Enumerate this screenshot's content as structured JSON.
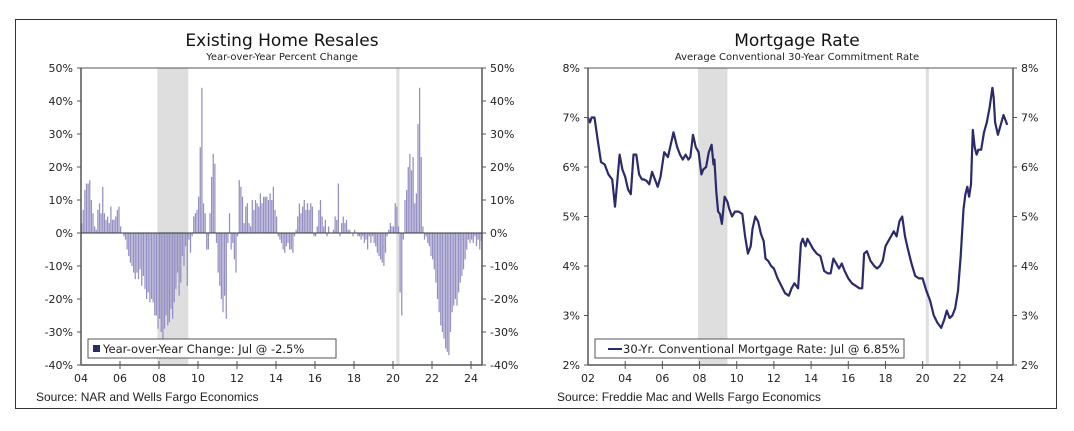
{
  "colors": {
    "bar": "#9590c4",
    "line": "#2b2a6b",
    "legend_marker": "#2b2a6b",
    "recession": "#dedede",
    "axis": "#555555"
  },
  "chart_data": [
    {
      "type": "bar",
      "title": "Existing Home Resales",
      "subtitle": "Year-over-Year Percent Change",
      "xlabel": "",
      "ylabel": "",
      "ylim": [
        -40,
        50
      ],
      "yticks": [
        50,
        40,
        30,
        20,
        10,
        0,
        -10,
        -20,
        -30,
        -40
      ],
      "ytick_labels": [
        "50%",
        "40%",
        "30%",
        "20%",
        "10%",
        "0%",
        "-10%",
        "-20%",
        "-30%",
        "-40%"
      ],
      "xlim": [
        2004,
        2024.6
      ],
      "xticks": [
        2004,
        2006,
        2008,
        2010,
        2012,
        2014,
        2016,
        2018,
        2020,
        2022,
        2024
      ],
      "xtick_labels": [
        "04",
        "06",
        "08",
        "10",
        "12",
        "14",
        "16",
        "18",
        "20",
        "22",
        "24"
      ],
      "recessions": [
        [
          2007.92,
          2009.5
        ],
        [
          2020.17,
          2020.33
        ]
      ],
      "legend": {
        "marker": "square",
        "label": "Year-over-Year Change: Jul @ -2.5%",
        "position": "bottom-left"
      },
      "source": "Source: NAR and Wells Fargo Economics",
      "frequency": "monthly",
      "start": 2004.0,
      "series": [
        {
          "name": "Year-over-Year Change",
          "values": [
            3,
            7,
            13,
            15,
            15,
            16,
            10,
            6,
            2,
            1,
            7,
            9,
            6,
            14,
            6,
            4,
            5,
            3,
            8,
            4,
            4,
            5,
            7,
            8,
            2,
            0,
            -1,
            -2,
            -5,
            -7,
            -9,
            -10,
            -12,
            -14,
            -12,
            -14,
            -11,
            -16,
            -13,
            -17,
            -20,
            -18,
            -21,
            -20,
            -21,
            -25,
            -25,
            -29,
            -26,
            -30,
            -32,
            -29,
            -25,
            -28,
            -27,
            -23,
            -26,
            -21,
            -17,
            -12,
            -19,
            -15,
            -7,
            -10,
            -4,
            -16,
            -2,
            -6,
            -1,
            5,
            6,
            7,
            11,
            26,
            44,
            9,
            6,
            -5,
            -5,
            6,
            17,
            24,
            21,
            -3,
            -12,
            -16,
            -20,
            -24,
            -19,
            -26,
            -3,
            6,
            -5,
            -3,
            -8,
            -12,
            -1,
            16,
            14,
            11,
            3,
            8,
            9,
            3,
            2,
            10,
            7,
            10,
            9,
            8,
            12,
            9,
            11,
            11,
            11,
            10,
            12,
            10,
            14,
            7,
            5,
            -1,
            -2,
            -3,
            -5,
            -6,
            -4,
            -3,
            -5,
            -5,
            -6,
            -1,
            1,
            5,
            9,
            6,
            8,
            10,
            7,
            9,
            7,
            9,
            8,
            -1,
            -1,
            2,
            7,
            10,
            5,
            2,
            4,
            -1,
            2,
            0,
            0,
            1,
            5,
            4,
            15,
            -1,
            3,
            5,
            3,
            4,
            1,
            1,
            0,
            -1,
            1,
            0,
            -1,
            -1,
            -2,
            -1,
            -3,
            -2,
            -5,
            -1,
            -3,
            -1,
            -3,
            -4,
            -6,
            -7,
            -8,
            -9,
            -10,
            -6,
            -1,
            1,
            3,
            2,
            2,
            9,
            8,
            2,
            -18,
            -25,
            -2,
            10,
            13,
            20,
            24,
            19,
            23,
            9,
            12,
            33,
            44,
            23,
            2,
            -2,
            -1,
            -3,
            -4,
            -7,
            -8,
            -11,
            -15,
            -20,
            -24,
            -28,
            -30,
            -32,
            -35,
            -36,
            -37,
            -30,
            -24,
            -22,
            -20,
            -22,
            -18,
            -15,
            -13,
            -11,
            -8,
            -5,
            -2,
            -3,
            -2,
            -3,
            -1,
            -4,
            -2,
            -5,
            -2.5
          ]
        }
      ]
    },
    {
      "type": "line",
      "title": "Mortgage Rate",
      "subtitle": "Average Conventional 30-Year Commitment Rate",
      "xlabel": "",
      "ylabel": "",
      "ylim": [
        2,
        8
      ],
      "yticks": [
        8,
        7,
        6,
        5,
        4,
        3,
        2
      ],
      "ytick_labels": [
        "8%",
        "7%",
        "6%",
        "5%",
        "4%",
        "3%",
        "2%"
      ],
      "xlim": [
        2002,
        2024.8
      ],
      "xticks": [
        2002,
        2004,
        2006,
        2008,
        2010,
        2012,
        2014,
        2016,
        2018,
        2020,
        2022,
        2024
      ],
      "xtick_labels": [
        "02",
        "04",
        "06",
        "08",
        "10",
        "12",
        "14",
        "16",
        "18",
        "20",
        "22",
        "24"
      ],
      "recessions": [
        [
          2007.92,
          2009.5
        ],
        [
          2020.17,
          2020.33
        ]
      ],
      "legend": {
        "marker": "line",
        "label": "30-Yr. Conventional Mortgage Rate: Jul @ 6.85%",
        "position": "bottom-left"
      },
      "source": "Source: Freddie Mac and Wells Fargo Economics",
      "series": [
        {
          "name": "30-Yr. Conventional Mortgage Rate",
          "x": [
            2002.0,
            2002.1,
            2002.2,
            2002.35,
            2002.5,
            2002.7,
            2002.9,
            2003.1,
            2003.3,
            2003.45,
            2003.55,
            2003.7,
            2003.85,
            2004.0,
            2004.15,
            2004.3,
            2004.45,
            2004.6,
            2004.75,
            2004.9,
            2005.0,
            2005.15,
            2005.3,
            2005.45,
            2005.6,
            2005.75,
            2005.9,
            2006.1,
            2006.3,
            2006.45,
            2006.6,
            2006.8,
            2006.95,
            2007.1,
            2007.25,
            2007.4,
            2007.5,
            2007.65,
            2007.8,
            2007.95,
            2008.1,
            2008.2,
            2008.35,
            2008.5,
            2008.65,
            2008.75,
            2008.8,
            2008.9,
            2009.0,
            2009.1,
            2009.2,
            2009.35,
            2009.5,
            2009.6,
            2009.75,
            2009.9,
            2010.1,
            2010.3,
            2010.45,
            2010.6,
            2010.75,
            2010.85,
            2011.0,
            2011.15,
            2011.3,
            2011.45,
            2011.55,
            2011.7,
            2011.85,
            2012.0,
            2012.2,
            2012.4,
            2012.6,
            2012.8,
            2012.95,
            2013.1,
            2013.3,
            2013.45,
            2013.55,
            2013.7,
            2013.8,
            2013.95,
            2014.1,
            2014.3,
            2014.5,
            2014.7,
            2014.9,
            2015.05,
            2015.2,
            2015.35,
            2015.5,
            2015.65,
            2015.8,
            2016.0,
            2016.2,
            2016.4,
            2016.6,
            2016.75,
            2016.85,
            2017.0,
            2017.2,
            2017.4,
            2017.55,
            2017.7,
            2017.85,
            2018.0,
            2018.15,
            2018.3,
            2018.45,
            2018.6,
            2018.75,
            2018.9,
            2019.05,
            2019.2,
            2019.4,
            2019.6,
            2019.8,
            2020.0,
            2020.2,
            2020.4,
            2020.6,
            2020.8,
            2021.0,
            2021.15,
            2021.3,
            2021.45,
            2021.6,
            2021.75,
            2021.9,
            2022.05,
            2022.2,
            2022.3,
            2022.4,
            2022.5,
            2022.6,
            2022.7,
            2022.8,
            2022.9,
            2023.0,
            2023.15,
            2023.3,
            2023.45,
            2023.6,
            2023.75,
            2023.82,
            2023.9,
            2024.05,
            2024.2,
            2024.35,
            2024.5,
            2024.55
          ],
          "values": [
            7.0,
            6.9,
            7.0,
            7.0,
            6.6,
            6.1,
            6.05,
            5.85,
            5.75,
            5.2,
            5.6,
            6.25,
            5.95,
            5.8,
            5.55,
            5.45,
            6.25,
            6.25,
            5.85,
            5.75,
            5.75,
            5.72,
            5.65,
            5.9,
            5.75,
            5.6,
            5.8,
            6.3,
            6.2,
            6.45,
            6.7,
            6.4,
            6.25,
            6.15,
            6.25,
            6.15,
            6.2,
            6.65,
            6.4,
            6.3,
            5.85,
            5.95,
            6.0,
            6.3,
            6.45,
            6.05,
            6.15,
            5.5,
            5.1,
            5.05,
            4.85,
            5.4,
            5.3,
            5.15,
            5.0,
            5.1,
            5.1,
            5.05,
            4.6,
            4.25,
            4.4,
            4.75,
            5.0,
            4.9,
            4.65,
            4.5,
            4.15,
            4.1,
            4.0,
            3.95,
            3.75,
            3.6,
            3.45,
            3.4,
            3.55,
            3.65,
            3.55,
            4.45,
            4.55,
            4.4,
            4.55,
            4.45,
            4.35,
            4.25,
            4.2,
            3.9,
            3.85,
            3.85,
            4.15,
            4.05,
            3.95,
            4.05,
            3.9,
            3.75,
            3.65,
            3.6,
            3.55,
            3.55,
            4.25,
            4.3,
            4.1,
            4.0,
            3.95,
            4.0,
            4.1,
            4.4,
            4.5,
            4.6,
            4.7,
            4.6,
            4.9,
            5.0,
            4.6,
            4.35,
            4.05,
            3.8,
            3.75,
            3.75,
            3.5,
            3.3,
            3.0,
            2.85,
            2.75,
            2.9,
            3.1,
            2.95,
            3.0,
            3.15,
            3.5,
            4.2,
            5.15,
            5.45,
            5.6,
            5.4,
            5.65,
            6.75,
            6.4,
            6.25,
            6.35,
            6.35,
            6.7,
            6.9,
            7.2,
            7.6,
            7.4,
            6.9,
            6.65,
            6.85,
            7.05,
            6.9,
            6.85
          ]
        }
      ]
    }
  ]
}
